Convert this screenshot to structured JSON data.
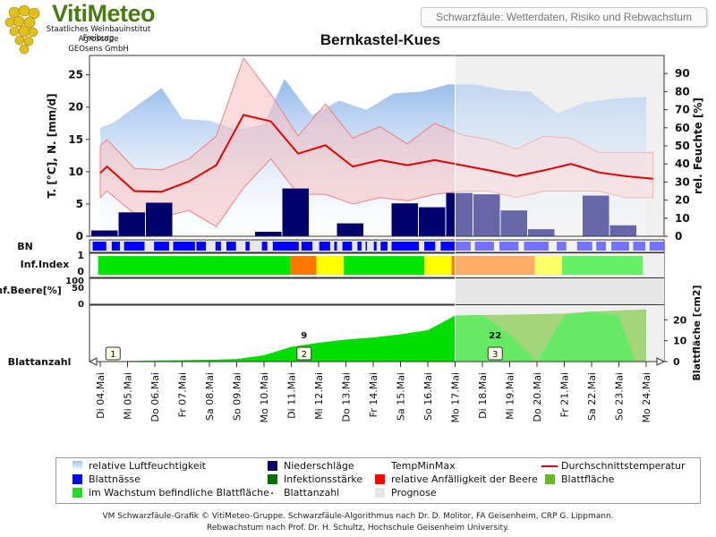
{
  "header": {
    "logo_title": "VitiMeteo",
    "logo_lines": [
      "Staatliches Weinbauinstitut Freiburg",
      "Agroscope",
      "GEOsens GmbH"
    ],
    "subtitle": "Schwarzfäule: Wetterdaten, Risiko und Rebwachstum",
    "title": "Bernkastel-Kues"
  },
  "chart_data": {
    "type": "line",
    "dates": [
      "Di 04.Mai",
      "Mi 05.Mai",
      "Do 06.Mai",
      "Fr 07.Mai",
      "Sa 08.Mai",
      "So 09.Mai",
      "Mo 10.Mai",
      "Di 11.Mai",
      "Mi 12.Mai",
      "Do 13.Mai",
      "Fr 14.Mai",
      "Sa 15.Mai",
      "So 16.Mai",
      "Mo 17.Mai",
      "Di 18.Mai",
      "Mi 19.Mai",
      "Do 20.Mai",
      "Fr 21.Mai",
      "Sa 22.Mai",
      "So 23.Mai",
      "Mo 24.Mai"
    ],
    "forecast_start": "Mo 17.Mai",
    "ylabel_left": "T. [°C], N. [mm/d]",
    "ylabel_right": "rel. Feuchte [%]",
    "left_ticks": [
      0,
      5,
      10,
      15,
      20,
      25
    ],
    "right_ticks": [
      0,
      10,
      20,
      30,
      40,
      50,
      60,
      70,
      80,
      90
    ],
    "ylim_left": [
      0,
      28
    ],
    "ylim_right": [
      0,
      100
    ],
    "humidity_x": [
      0,
      0.5,
      1.5,
      2.25,
      3,
      4,
      5,
      6,
      6.75,
      7.75,
      8.75,
      9.75,
      10.75,
      11.75,
      12.75,
      13.75,
      14.75,
      15.75,
      16.75,
      17.75,
      18.75,
      19.75,
      20
    ],
    "humidity": [
      60,
      63,
      74,
      82,
      65,
      64,
      59,
      62,
      87,
      67,
      75,
      70,
      79,
      80,
      84,
      84,
      81,
      80,
      68,
      74,
      76,
      77,
      77
    ],
    "temp_mean_x": [
      0,
      0.25,
      1.25,
      2.25,
      3.25,
      4.25,
      5.25,
      6.25,
      7.25,
      8.25,
      9.25,
      10.25,
      11.25,
      12.25,
      13.25,
      14.25,
      15.25,
      16.25,
      17.25,
      18.25,
      19.25,
      20.25
    ],
    "temp_mean": [
      9.8,
      10.8,
      7.0,
      6.9,
      8.5,
      11.0,
      18.8,
      17.8,
      12.8,
      14.1,
      10.8,
      11.8,
      11.0,
      11.8,
      11.0,
      10.2,
      9.3,
      10.2,
      11.2,
      9.9,
      9.3,
      8.9
    ],
    "temp_max": [
      14,
      15,
      10.5,
      10.3,
      12,
      15.5,
      27.6,
      22,
      15.5,
      20.5,
      15.2,
      17,
      14.3,
      17.5,
      15.7,
      15,
      13.5,
      15.5,
      15.2,
      13,
      13,
      13
    ],
    "temp_min": [
      6,
      7,
      3.5,
      3,
      4,
      1.5,
      7.5,
      12,
      6.5,
      6.5,
      5,
      6,
      5.5,
      6.5,
      7,
      7,
      6,
      7,
      7,
      7,
      6,
      6
    ],
    "precip": [
      0.9,
      3.7,
      5.2,
      0,
      0,
      0,
      0.7,
      7.4,
      0,
      2.0,
      0,
      5.1,
      4.5,
      6.7,
      6.5,
      4.0,
      1.1,
      0,
      6.3,
      1.7,
      0
    ],
    "leaf_wetness_label": "BN",
    "leaf_wetness": [
      [
        0.05,
        0.55
      ],
      [
        0.75,
        1.05
      ],
      [
        1.2,
        1.95
      ],
      [
        2.3,
        2.85
      ],
      [
        3.0,
        3.8
      ],
      [
        3.85,
        4.2
      ],
      [
        4.55,
        4.75
      ],
      [
        4.95,
        5.3
      ],
      [
        5.65,
        5.8
      ],
      [
        6.25,
        6.45
      ],
      [
        6.65,
        7.6
      ],
      [
        7.7,
        8.1
      ],
      [
        8.35,
        8.75
      ],
      [
        8.9,
        9.0
      ],
      [
        9.2,
        9.55
      ],
      [
        9.75,
        9.9
      ],
      [
        10.05,
        10.1
      ],
      [
        10.35,
        10.45
      ],
      [
        10.6,
        10.85
      ],
      [
        11.0,
        12.0
      ],
      [
        12.2,
        12.6
      ],
      [
        12.8,
        13.9
      ],
      [
        14.05,
        14.75
      ],
      [
        14.95,
        15.65
      ],
      [
        15.85,
        16.75
      ],
      [
        17.05,
        17.4
      ],
      [
        17.8,
        18.35
      ],
      [
        18.5,
        18.85
      ],
      [
        19.05,
        19.7
      ],
      [
        19.85,
        20.3
      ],
      [
        20.45,
        21.0
      ]
    ],
    "infection_label": "Inf.Index",
    "infection_ticks": [
      0,
      1
    ],
    "infection_segments": [
      [
        0.25,
        7.3,
        "#00e600"
      ],
      [
        7.3,
        8.25,
        "#ff7700"
      ],
      [
        8.25,
        9.25,
        "#ffff00"
      ],
      [
        9.25,
        12.2,
        "#00e600"
      ],
      [
        12.2,
        13.2,
        "#ffff00"
      ],
      [
        13.2,
        13.3,
        "#ff7700"
      ],
      [
        13.3,
        16.25,
        "#ff7700"
      ],
      [
        16.25,
        17.25,
        "#ffff00"
      ],
      [
        17.25,
        20.2,
        "#00e600"
      ]
    ],
    "berry_label": "Inf.Beere[%]",
    "berry_ticks": [
      0,
      50,
      100
    ],
    "leaf_label": "Blattanzahl",
    "leaf_area_label": "Blattfläche [cm2]",
    "leaf_area_ticks": [
      0,
      10,
      20
    ],
    "leaf_area_x": [
      0,
      2,
      4,
      5,
      6,
      7,
      8,
      9,
      10,
      11,
      12,
      13,
      14,
      15,
      15.5,
      16,
      17,
      18,
      19,
      20
    ],
    "leaf_area": [
      0,
      0.5,
      0.8,
      1.2,
      3,
      7,
      9,
      10.5,
      11.5,
      13,
      15,
      22,
      22.3,
      22.5,
      22.6,
      22.7,
      23,
      24,
      24.5,
      25
    ],
    "leaf_area_green_x": [
      0,
      2,
      4,
      5,
      6,
      7,
      8,
      9,
      10,
      11,
      12,
      13,
      14,
      15,
      16,
      17,
      18,
      19,
      19.6
    ],
    "leaf_area_green": [
      0,
      0.5,
      0.8,
      1.2,
      3,
      7,
      9,
      10.5,
      11.5,
      13,
      15,
      22,
      22.3,
      13,
      0,
      22,
      24,
      22,
      0
    ],
    "leaf_number_labels": [
      {
        "x": 0.5,
        "value": "1"
      },
      {
        "x": 7.5,
        "value": "2"
      },
      {
        "x": 14.5,
        "value": "3"
      }
    ],
    "leaf_value_labels": [
      {
        "x": 7.5,
        "value": "9"
      },
      {
        "x": 14.5,
        "value": "22"
      }
    ]
  },
  "legend": {
    "items": [
      {
        "label": "relative Luftfeuchtigkeit",
        "color": "#9cc2ec",
        "kind": "gradient"
      },
      {
        "label": "Niederschläge",
        "color": "#00006e",
        "kind": "box"
      },
      {
        "label": "TempMinMax",
        "color": "#ffffff",
        "kind": "none"
      },
      {
        "label": "Durchschnittstemperatur",
        "color": "#e00000",
        "kind": "line"
      },
      {
        "label": "Blattnässe",
        "color": "#0000ff",
        "kind": "box"
      },
      {
        "label": "Infektionsstärke",
        "color": "#007000",
        "kind": "box"
      },
      {
        "label": "relative Anfälligkeit der Beere",
        "color": "#ff0000",
        "kind": "box"
      },
      {
        "label": "Blattfläche",
        "color": "#66bb22",
        "kind": "box"
      },
      {
        "label": "im Wachstum befindliche Blattfläche",
        "color": "#22dd22",
        "kind": "box"
      },
      {
        "label": "Blattanzahl",
        "color": "#009900",
        "kind": "dot"
      },
      {
        "label": "Prognose",
        "color": "#e6e6e6",
        "kind": "box"
      }
    ]
  },
  "footer": {
    "line1": "VM Schwarzfäule-Grafik © VitiMeteo-Gruppe. Schwarzfäule-Algorithmus nach Dr. D. Molitor, FA Geisenheim, CRP G. Lippmann.",
    "line2": "Rebwachstum nach Prof. Dr. H. Schultz, Hochschule Geisenheim University."
  },
  "colors": {
    "humidity": "#8fb6e8",
    "temp_band": "#f7c0c0",
    "temp_mean": "#e00000",
    "precip": "#00006e",
    "forecast_bg": "#e6e6e6",
    "leaf_wet": "#0000ff",
    "leaf_area": "#00dd00",
    "axis_tick": "#111111"
  }
}
